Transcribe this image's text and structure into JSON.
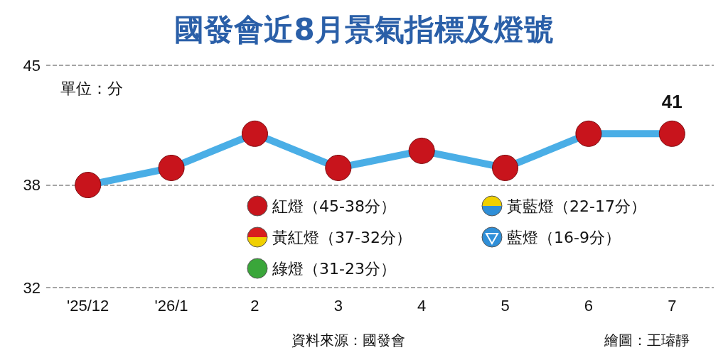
{
  "chart_data": {
    "type": "line",
    "title": "國發會近8月景氣指標及燈號",
    "categories": [
      "'25/12",
      "'26/1",
      "2",
      "3",
      "4",
      "5",
      "6",
      "7"
    ],
    "series": [
      {
        "color": "#4aaee6",
        "values": [
          38,
          39,
          41,
          39,
          40,
          39,
          41,
          41
        ],
        "colors": [
          "#c8141c",
          "#c8141c",
          "#c8141c",
          "#c8141c",
          "#c8141c",
          "#c8141c",
          "#c8141c",
          "#c8141c"
        ],
        "value_labels": [
          null,
          null,
          null,
          null,
          null,
          null,
          null,
          "41"
        ]
      }
    ],
    "ylim": [
      32,
      45
    ],
    "yticks": [
      32,
      38,
      45
    ],
    "grid": "y",
    "marker": "circle",
    "line_style": "solid",
    "annotations": [
      "單位：分",
      "紅燈（45-38分）",
      "黃紅燈（37-32分）",
      "綠燈（31-23分）",
      "黃藍燈（22-17分）",
      "藍燈（16-9分）",
      "資料來源：國發會",
      "繪圖：王璿靜"
    ]
  }
}
